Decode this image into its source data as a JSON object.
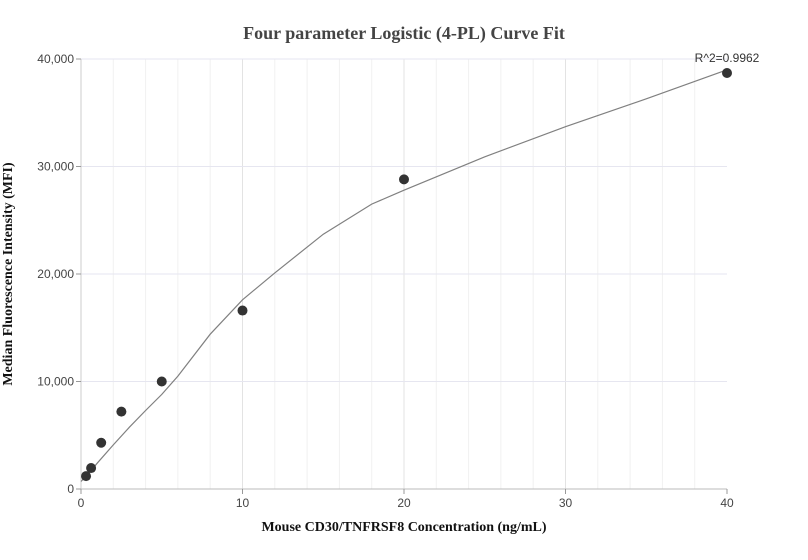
{
  "chart_data": {
    "type": "scatter",
    "title": "Four parameter Logistic (4-PL) Curve Fit",
    "xlabel": "Mouse CD30/TNFRSF8 Concentration (ng/mL)",
    "ylabel": "Median Fluorescence Intensity (MFI)",
    "xlim": [
      0,
      40
    ],
    "ylim": [
      0,
      40000
    ],
    "x_ticks": [
      0,
      10,
      20,
      30,
      40
    ],
    "x_tick_labels": [
      "0",
      "10",
      "20",
      "30",
      "40"
    ],
    "y_ticks": [
      0,
      10000,
      20000,
      30000,
      40000
    ],
    "y_tick_labels": [
      "0",
      "10,000",
      "20,000",
      "30,000",
      "40,000"
    ],
    "grid": true,
    "points": {
      "x": [
        0.3125,
        0.625,
        1.25,
        2.5,
        5,
        10,
        20,
        40
      ],
      "y": [
        1200,
        1950,
        4300,
        7200,
        10000,
        16600,
        28800,
        38700
      ]
    },
    "fit_curve": {
      "x": [
        0,
        0.5,
        1,
        2,
        3,
        4,
        5,
        6,
        8,
        10,
        12,
        15,
        18,
        20,
        25,
        30,
        35,
        40
      ],
      "y": [
        700,
        1500,
        2400,
        4100,
        5750,
        7300,
        8800,
        10500,
        14400,
        17600,
        20100,
        23700,
        26500,
        27800,
        30900,
        33700,
        36300,
        39000
      ]
    },
    "annotation": "R^2=0.9962"
  }
}
